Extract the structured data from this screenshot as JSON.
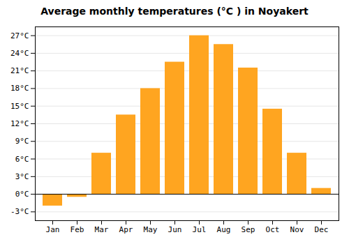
{
  "chart_data": {
    "type": "bar",
    "title": "Average monthly temperatures (°C ) in Noyakert",
    "categories": [
      "Jan",
      "Feb",
      "Mar",
      "Apr",
      "May",
      "Jun",
      "Jul",
      "Aug",
      "Sep",
      "Oct",
      "Nov",
      "Dec"
    ],
    "values": [
      -2.0,
      -0.5,
      7.0,
      13.5,
      18.0,
      22.5,
      27.0,
      25.5,
      21.5,
      14.5,
      7.0,
      1.0
    ],
    "color": "#FFA520",
    "ylim": [
      -4.5,
      28.5
    ],
    "yticks": [
      {
        "value": -3,
        "label": "-3°C"
      },
      {
        "value": 0,
        "label": "0°C"
      },
      {
        "value": 3,
        "label": "3°C"
      },
      {
        "value": 6,
        "label": "6°C"
      },
      {
        "value": 9,
        "label": "9°C"
      },
      {
        "value": 12,
        "label": "12°C"
      },
      {
        "value": 15,
        "label": "15°C"
      },
      {
        "value": 18,
        "label": "18°C"
      },
      {
        "value": 21,
        "label": "21°C"
      },
      {
        "value": 24,
        "label": "24°C"
      },
      {
        "value": 27,
        "label": "27°C"
      }
    ],
    "grid": true
  }
}
